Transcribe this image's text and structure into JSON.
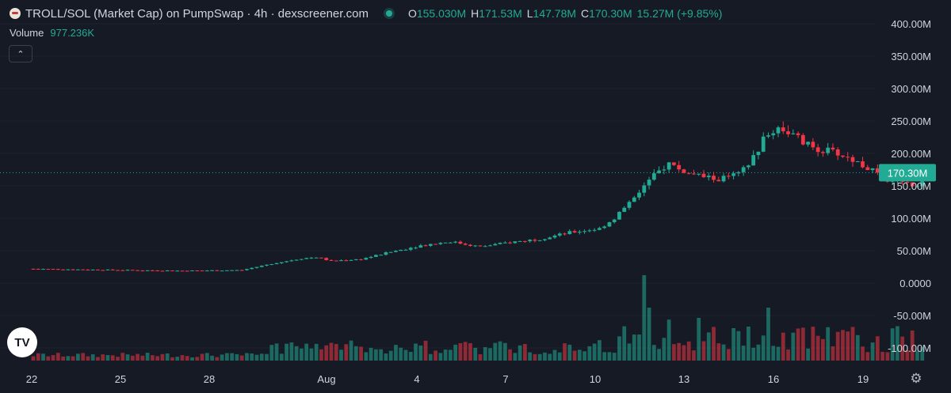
{
  "header": {
    "title": "TROLL/SOL (Market Cap) on PumpSwap · 4h · dexscreener.com",
    "open_label": "O",
    "open": "155.030M",
    "high_label": "H",
    "high": "171.53M",
    "low_label": "L",
    "low": "147.78M",
    "close_label": "C",
    "close": "170.30M",
    "change": "15.27M (+9.85%)",
    "up_color": "#22ab94",
    "down_color": "#f23645"
  },
  "volume": {
    "label": "Volume",
    "value": "977.236K"
  },
  "chart_data": {
    "type": "candlestick",
    "y_tick_labels": [
      "400.00M",
      "350.00M",
      "300.00M",
      "250.00M",
      "200.00M",
      "150.00M",
      "100.00M",
      "50.00M",
      "0.0000",
      "-50.00M",
      "-100.00M"
    ],
    "y_tick_values": [
      400,
      350,
      300,
      250,
      200,
      150,
      100,
      50,
      0,
      -50,
      -100
    ],
    "x_tick_labels": [
      "22",
      "25",
      "28",
      "Aug",
      "4",
      "7",
      "10",
      "13",
      "16",
      "19"
    ],
    "last_price_label": "170.30M",
    "last_price": 170.3,
    "price_path": [
      {
        "d": 0,
        "v": 22
      },
      {
        "d": 3,
        "v": 20
      },
      {
        "d": 5,
        "v": 19
      },
      {
        "d": 7,
        "v": 20
      },
      {
        "d": 8,
        "v": 30
      },
      {
        "d": 9,
        "v": 38
      },
      {
        "d": 9.5,
        "v": 40
      },
      {
        "d": 10,
        "v": 34
      },
      {
        "d": 11,
        "v": 37
      },
      {
        "d": 12,
        "v": 48
      },
      {
        "d": 13,
        "v": 58
      },
      {
        "d": 14,
        "v": 64
      },
      {
        "d": 15,
        "v": 56
      },
      {
        "d": 16,
        "v": 63
      },
      {
        "d": 17,
        "v": 68
      },
      {
        "d": 18,
        "v": 78
      },
      {
        "d": 19,
        "v": 84
      },
      {
        "d": 19.5,
        "v": 100
      },
      {
        "d": 20,
        "v": 126
      },
      {
        "d": 20.5,
        "v": 150
      },
      {
        "d": 21,
        "v": 172
      },
      {
        "d": 21.3,
        "v": 185
      },
      {
        "d": 22,
        "v": 168
      },
      {
        "d": 23,
        "v": 160
      },
      {
        "d": 23.7,
        "v": 168
      },
      {
        "d": 24,
        "v": 182
      },
      {
        "d": 24.5,
        "v": 220
      },
      {
        "d": 25,
        "v": 242
      },
      {
        "d": 25.5,
        "v": 228
      },
      {
        "d": 26,
        "v": 212
      },
      {
        "d": 26.5,
        "v": 205
      },
      {
        "d": 27,
        "v": 200
      },
      {
        "d": 27.5,
        "v": 190
      },
      {
        "d": 28,
        "v": 178
      },
      {
        "d": 28.6,
        "v": 160
      },
      {
        "d": 29,
        "v": 165
      },
      {
        "d": 29.5,
        "v": 150
      },
      {
        "d": 29.8,
        "v": 156
      },
      {
        "d": 29.9,
        "v": 170.3
      }
    ],
    "volume_spikes": [
      {
        "d": 20.5,
        "v": 1.0
      },
      {
        "d": 20.7,
        "v": 0.62
      },
      {
        "d": 21.3,
        "v": 0.48
      },
      {
        "d": 22.3,
        "v": 0.5
      },
      {
        "d": 23.5,
        "v": 0.38
      },
      {
        "d": 24.7,
        "v": 0.62
      },
      {
        "d": 20.0,
        "v": 0.2
      },
      {
        "d": 8.2,
        "v": 0.2
      }
    ]
  }
}
